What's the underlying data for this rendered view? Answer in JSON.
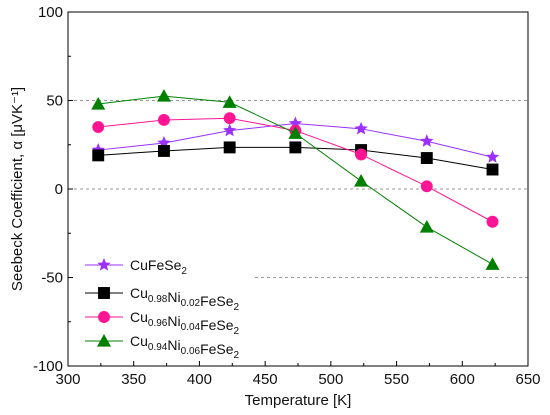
{
  "chart_data": {
    "type": "line",
    "xlabel": "Temperature [K]",
    "ylabel": "Seebeck Coefficient, α [μVK⁻¹]",
    "xlim": [
      300,
      650
    ],
    "ylim": [
      -100,
      100
    ],
    "x_ticks": [
      300,
      350,
      400,
      450,
      500,
      550,
      600,
      650
    ],
    "y_ticks": [
      -100,
      -50,
      0,
      50,
      100
    ],
    "grid": "dashed horizontal at 50, 0, -50",
    "legend_position": "bottom-left",
    "x": [
      323,
      373,
      423,
      473,
      523,
      573,
      623
    ],
    "series": [
      {
        "name": "CuFeSe2",
        "label_parts": [
          [
            "Cu",
            ""
          ],
          [
            "Fe",
            ""
          ],
          [
            "Se",
            "2"
          ]
        ],
        "marker": "star",
        "color": "#9b30ff",
        "values": [
          22,
          26,
          33,
          37,
          34,
          27,
          18
        ]
      },
      {
        "name": "Cu0.98Ni0.02FeSe2",
        "label_parts": [
          [
            "Cu",
            "0.98"
          ],
          [
            "Ni",
            "0.02"
          ],
          [
            "FeSe",
            "2"
          ]
        ],
        "marker": "square",
        "color": "#000000",
        "values": [
          19,
          21.5,
          23.5,
          23.5,
          22,
          17.5,
          11
        ]
      },
      {
        "name": "Cu0.96Ni0.04FeSe2",
        "label_parts": [
          [
            "Cu",
            "0.96"
          ],
          [
            "Ni",
            "0.04"
          ],
          [
            "FeSe",
            "2"
          ]
        ],
        "marker": "circle",
        "color": "#ff1493",
        "values": [
          35,
          39,
          40,
          33,
          19.5,
          1.5,
          -18.5
        ]
      },
      {
        "name": "Cu0.94Ni0.06FeSe2",
        "label_parts": [
          [
            "Cu",
            "0.94"
          ],
          [
            "Ni",
            "0.06"
          ],
          [
            "FeSe",
            "2"
          ]
        ],
        "marker": "triangle",
        "color": "#008000",
        "values": [
          48,
          52.5,
          49,
          31.5,
          4.5,
          -21.5,
          -42.5
        ]
      }
    ]
  }
}
